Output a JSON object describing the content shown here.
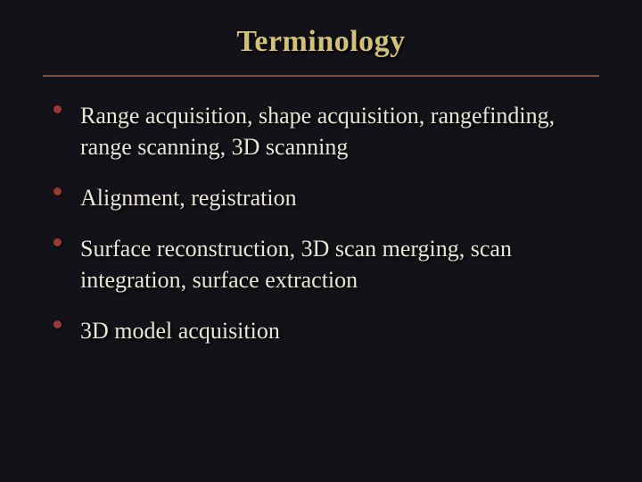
{
  "slide": {
    "background_color": "#121218",
    "title": {
      "text": "Terminology",
      "color": "#d1c07a",
      "fontsize": 34
    },
    "rule_color": "#765340",
    "bullet_color": "#9a3a32",
    "body_text_color": "#e8e5d8",
    "body_fontsize": 26,
    "item_spacing": 22,
    "items": [
      "Range acquisition, shape acquisition, rangefinding, range scanning, 3D scanning",
      "Alignment, registration",
      "Surface reconstruction, 3D scan merging, scan integration, surface extraction",
      "3D model acquisition"
    ]
  }
}
